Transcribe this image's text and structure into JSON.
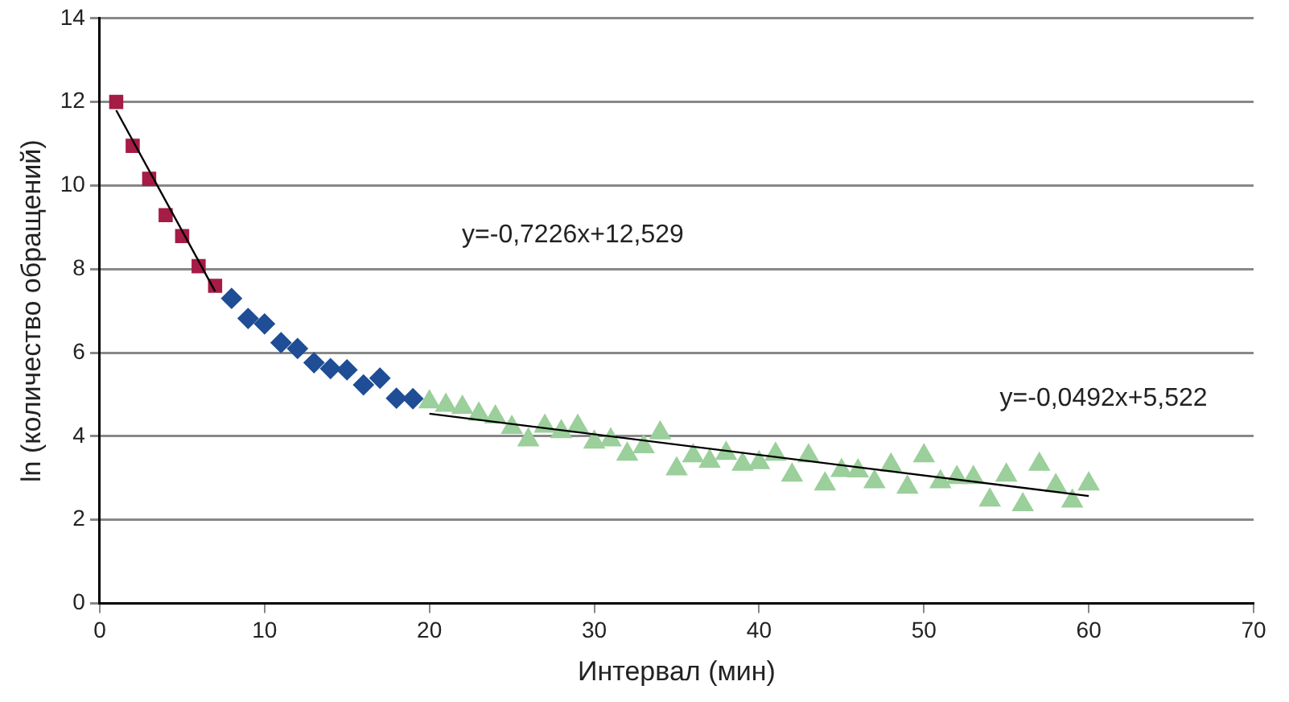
{
  "chart_data": {
    "type": "scatter",
    "xlabel": "Интервал (мин)",
    "ylabel": "ln (количество обращений)",
    "xlim": [
      0,
      70
    ],
    "xticks": [
      0,
      10,
      20,
      30,
      40,
      50,
      60,
      70
    ],
    "ylim": [
      0,
      14
    ],
    "yticks": [
      0,
      2,
      4,
      6,
      8,
      10,
      12,
      14
    ],
    "grid": "y",
    "legend": false,
    "series": [
      {
        "type": "scatter",
        "marker": "square",
        "color": "#a51c46",
        "x": [
          1,
          2,
          3,
          4,
          5,
          6,
          7
        ],
        "values": [
          12.0,
          10.95,
          10.16,
          9.29,
          8.79,
          8.07,
          7.6
        ]
      },
      {
        "type": "scatter",
        "marker": "diamond",
        "color": "#1f4e96",
        "x": [
          8,
          9,
          10,
          11,
          12,
          13,
          14,
          15,
          16,
          17,
          18,
          19
        ],
        "values": [
          7.3,
          6.82,
          6.69,
          6.24,
          6.1,
          5.76,
          5.62,
          5.59,
          5.23,
          5.39,
          4.91,
          4.9
        ]
      },
      {
        "type": "scatter",
        "marker": "triangle",
        "color": "#9bcf9b",
        "x": [
          20,
          21,
          22,
          23,
          24,
          25,
          26,
          27,
          28,
          29,
          30,
          31,
          32,
          33,
          34,
          35,
          36,
          37,
          38,
          39,
          40,
          41,
          42,
          43,
          44,
          45,
          46,
          47,
          48,
          49,
          50,
          51,
          52,
          53,
          54,
          55,
          56,
          57,
          58,
          59,
          60
        ],
        "values": [
          4.82,
          4.74,
          4.69,
          4.53,
          4.46,
          4.21,
          3.91,
          4.24,
          4.11,
          4.24,
          3.86,
          3.91,
          3.57,
          3.75,
          4.08,
          3.22,
          3.53,
          3.4,
          3.59,
          3.33,
          3.37,
          3.57,
          3.07,
          3.53,
          2.86,
          3.18,
          3.17,
          2.91,
          3.31,
          2.78,
          3.53,
          2.91,
          3.01,
          3.01,
          2.47,
          3.07,
          2.36,
          3.33,
          2.82,
          2.45,
          2.86
        ]
      },
      {
        "type": "line",
        "marker": "none",
        "color": "#000000",
        "x": [
          1,
          7
        ],
        "values": [
          11.8,
          7.47
        ]
      },
      {
        "type": "line",
        "marker": "none",
        "color": "#000000",
        "x": [
          20,
          60
        ],
        "values": [
          4.54,
          2.57
        ]
      }
    ],
    "annotations": [
      "y=-0,7226x+12,529",
      "y=-0,0492x+5,522"
    ]
  }
}
